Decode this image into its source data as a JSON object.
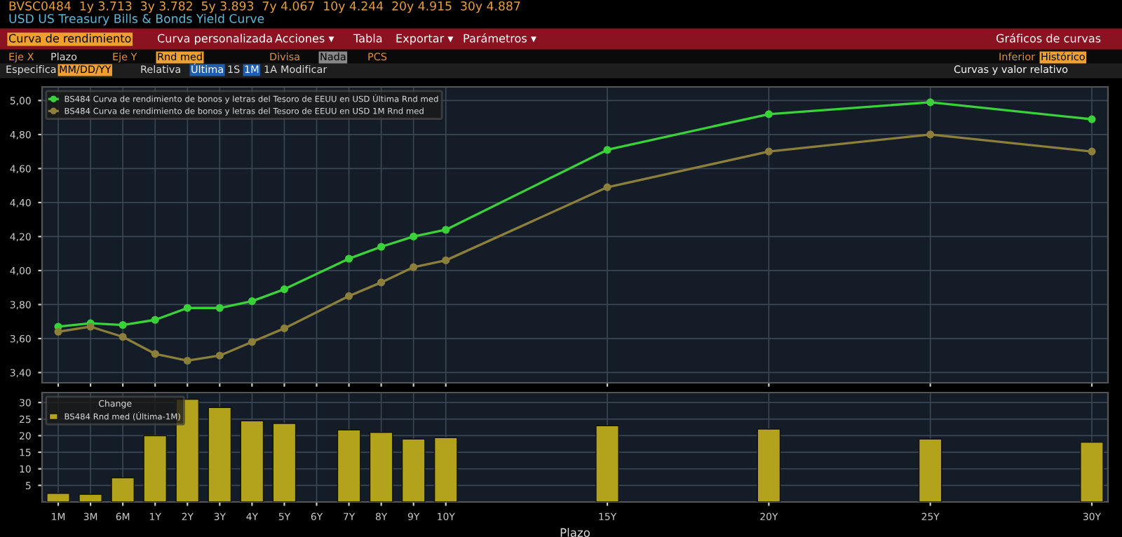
{
  "chart_data": [
    {
      "type": "line",
      "annotations": [
        "BVSC0484  1y 3.713  3y 3.782  5y 3.893  7y 4.067  10y 4.244  20y 4.915  30y 4.887",
        "USD US Treasury Bills & Bonds Yield Curve",
        "Curva de rendimiento",
        "Curva personalizada",
        "Acciones ▾",
        "Tabla",
        "Exportar ▾",
        "Parámetros ▾",
        "Gráficos de curvas",
        "Eje X",
        "Plazo",
        "Eje Y",
        "Rnd med",
        "Divisa",
        "Nada",
        "PCS",
        "Inferior",
        "Histórico",
        "Especifica",
        "MM/DD/YY",
        "Relativa",
        "Última",
        "1S",
        "1M",
        "1A",
        "Modificar",
        "Curvas y valor relativo"
      ],
      "categories": [
        "1M",
        "3M",
        "6M",
        "1Y",
        "2Y",
        "3Y",
        "4Y",
        "5Y",
        "6Y",
        "7Y",
        "8Y",
        "9Y",
        "10Y",
        null,
        null,
        null,
        null,
        "15Y",
        null,
        null,
        null,
        null,
        "20Y",
        null,
        null,
        null,
        null,
        "25Y",
        null,
        null,
        null,
        null,
        "30Y"
      ],
      "series": [
        {
          "name": "BS484 Curva de rendimiento de bonos y letras del Tesoro de EEUU en USD Última Rnd med",
          "color": "#3ad13a",
          "values": [
            3.67,
            3.69,
            3.68,
            3.71,
            3.78,
            3.78,
            3.82,
            3.89,
            null,
            4.07,
            4.14,
            4.2,
            4.24,
            null,
            null,
            null,
            null,
            4.71,
            null,
            null,
            null,
            null,
            4.92,
            null,
            null,
            null,
            null,
            4.99,
            null,
            null,
            null,
            null,
            4.89
          ]
        },
        {
          "name": "BS484 Curva de rendimiento de bonos y letras del Tesoro de EEUU en USD 1M Rnd med",
          "color": "#8c7f3c",
          "values": [
            3.64,
            3.67,
            3.61,
            3.51,
            3.47,
            3.5,
            3.58,
            3.66,
            null,
            3.85,
            3.93,
            4.02,
            4.06,
            null,
            null,
            null,
            null,
            4.49,
            null,
            null,
            null,
            null,
            4.7,
            null,
            null,
            null,
            null,
            4.8,
            null,
            null,
            null,
            null,
            4.7
          ]
        }
      ],
      "ylim": [
        3.34,
        5.08
      ],
      "yticks": [
        {
          "value": 3.4,
          "label": "3,40"
        },
        {
          "value": 3.6,
          "label": "3,60"
        },
        {
          "value": 3.8,
          "label": "3,80"
        },
        {
          "value": 4.0,
          "label": "4,00"
        },
        {
          "value": 4.2,
          "label": "4,20"
        },
        {
          "value": 4.4,
          "label": "4,40"
        },
        {
          "value": 4.6,
          "label": "4,60"
        },
        {
          "value": 4.8,
          "label": "4,80"
        },
        {
          "value": 5.0,
          "label": "5,00"
        }
      ],
      "grid": true,
      "legend": "top left",
      "marker": "circle",
      "tick_labels": "y"
    },
    {
      "type": "bar",
      "xlabel": "Plazo",
      "legend_title": "Change",
      "series": [
        {
          "name": "BS484 Rnd med (Última-1M)",
          "color": "#b3a21c",
          "values": [
            2.6,
            2.3,
            7.3,
            20,
            31,
            28.5,
            24.5,
            23.7,
            null,
            21.7,
            21,
            19,
            19.4,
            null,
            null,
            null,
            null,
            23,
            null,
            null,
            null,
            null,
            22,
            null,
            null,
            null,
            null,
            19,
            null,
            null,
            null,
            null,
            18
          ]
        }
      ],
      "ylim": [
        0,
        33
      ],
      "yticks": [
        5,
        10,
        15,
        20,
        25,
        30
      ],
      "grid": true,
      "legend": "top left"
    }
  ]
}
